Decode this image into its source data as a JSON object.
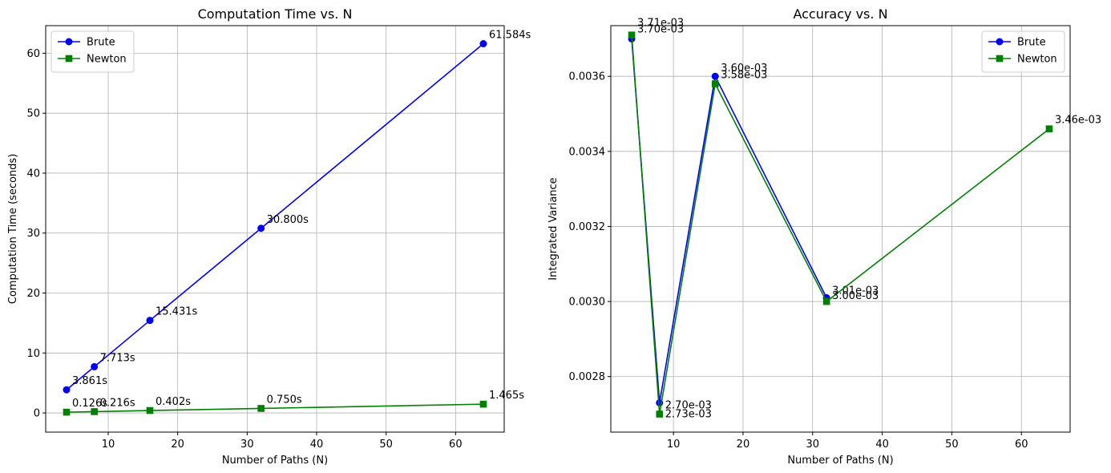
{
  "colors": {
    "brute": "#0000ff",
    "newton": "#008000",
    "grid": "#b0b0b0",
    "axis": "#000000"
  },
  "chart_data": [
    {
      "type": "line",
      "title": "Computation Time vs. N",
      "xlabel": "Number of Paths (N)",
      "ylabel": "Computation Time (seconds)",
      "xlim": [
        1,
        67
      ],
      "ylim": [
        -3.2,
        64.6
      ],
      "xticks": [
        10,
        20,
        30,
        40,
        50,
        60
      ],
      "yticks": [
        0,
        10,
        20,
        30,
        40,
        50,
        60
      ],
      "ytick_labels": [
        "0",
        "10",
        "20",
        "30",
        "40",
        "50",
        "60"
      ],
      "grid": true,
      "legend_position": "top-left",
      "series": [
        {
          "name": "Brute",
          "color": "#0000ff",
          "marker": "circle",
          "x": [
            4,
            8,
            16,
            32,
            64
          ],
          "y": [
            3.861,
            7.713,
            15.431,
            30.8,
            61.584
          ],
          "labels": [
            "3.861s",
            "7.713s",
            "15.431s",
            "30.800s",
            "61.584s"
          ]
        },
        {
          "name": "Newton",
          "color": "#008000",
          "marker": "square",
          "x": [
            4,
            8,
            16,
            32,
            64
          ],
          "y": [
            0.126,
            0.216,
            0.402,
            0.75,
            1.465
          ],
          "labels": [
            "0.126s",
            "0.216s",
            "0.402s",
            "0.750s",
            "1.465s"
          ]
        }
      ]
    },
    {
      "type": "line",
      "title": "Accuracy vs. N",
      "xlabel": "Number of Paths (N)",
      "ylabel": "Integrated Variance",
      "xlim": [
        1,
        67
      ],
      "ylim": [
        0.002652,
        0.003735
      ],
      "xticks": [
        10,
        20,
        30,
        40,
        50,
        60
      ],
      "yticks": [
        0.0028,
        0.003,
        0.0032,
        0.0034,
        0.0036
      ],
      "ytick_labels": [
        "0.0028",
        "0.0030",
        "0.0032",
        "0.0034",
        "0.0036"
      ],
      "grid": true,
      "legend_position": "top-right",
      "series": [
        {
          "name": "Brute",
          "color": "#0000ff",
          "marker": "circle",
          "x": [
            4,
            8,
            16,
            32
          ],
          "y": [
            0.0037,
            0.00273,
            0.0036,
            0.00301
          ],
          "labels": [
            "3.70e-03",
            "2.73e-03",
            "3.60e-03",
            "3.01e-03"
          ]
        },
        {
          "name": "Newton",
          "color": "#008000",
          "marker": "square",
          "x": [
            4,
            8,
            16,
            32,
            64
          ],
          "y": [
            0.00371,
            0.0027,
            0.00358,
            0.003,
            0.00346
          ],
          "labels": [
            "3.71e-03",
            "2.70e-03",
            "3.58e-03",
            "3.00e-03",
            "3.46e-03"
          ]
        }
      ]
    }
  ]
}
